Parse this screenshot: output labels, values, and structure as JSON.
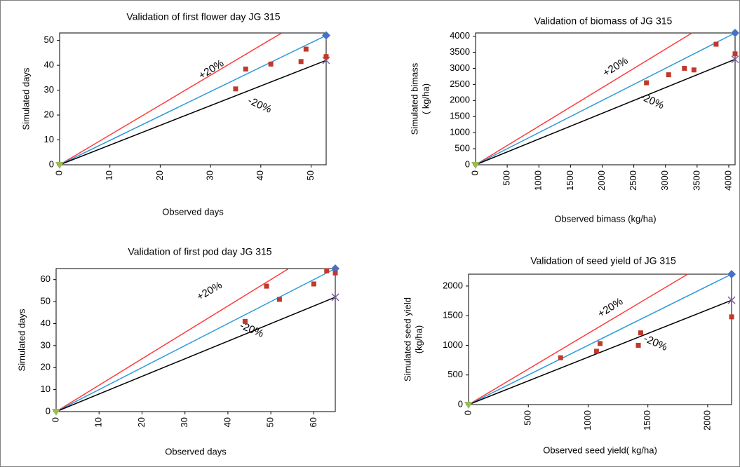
{
  "chart_data": [
    {
      "type": "scatter",
      "title": "Validation of first flower day JG 315",
      "xlabel": "Observed days",
      "ylabel": [
        "Simulated days"
      ],
      "xlim": [
        0,
        53
      ],
      "xticks": [
        0,
        10,
        20,
        30,
        40,
        50
      ],
      "ylim": [
        0,
        53
      ],
      "yticks": [
        0,
        10,
        20,
        30,
        40,
        50
      ],
      "annotations": [
        "+20%",
        "-20%"
      ],
      "series": [
        {
          "mode": "line",
          "color": "#ff3b3b",
          "x": [
            0,
            44
          ],
          "values": [
            0,
            52.8
          ]
        },
        {
          "mode": "line",
          "color": "#2e9ad8",
          "end_marker": "diamond",
          "end_color": "#4472c4",
          "x": [
            0,
            53
          ],
          "values": [
            0,
            52
          ]
        },
        {
          "mode": "line",
          "color": "#000000",
          "end_marker": "x",
          "end_color": "#8064a2",
          "x": [
            0,
            53
          ],
          "values": [
            0,
            42
          ]
        },
        {
          "mode": "markers",
          "marker": "triangle",
          "color": "#9bbb59",
          "x": [
            0
          ],
          "values": [
            0
          ]
        },
        {
          "mode": "markers",
          "marker": "square",
          "color": "#c0392b",
          "x": [
            35,
            37,
            42,
            48,
            49,
            53
          ],
          "values": [
            30.5,
            38.5,
            40.5,
            41.5,
            46.5,
            43.5
          ]
        }
      ]
    },
    {
      "type": "scatter",
      "title": "Validation of biomass of JG 315",
      "xlabel": "Observed bimass (kg/ha)",
      "ylabel": [
        "Simulated bimass",
        "( kg/ha)"
      ],
      "xlim": [
        0,
        4100
      ],
      "xticks": [
        0,
        500,
        1000,
        1500,
        2000,
        2500,
        3000,
        3500,
        4000
      ],
      "ylim": [
        0,
        4100
      ],
      "yticks": [
        0,
        500,
        1000,
        1500,
        2000,
        2500,
        3000,
        3500,
        4000
      ],
      "annotations": [
        "+20%",
        "-20%"
      ],
      "series": [
        {
          "mode": "line",
          "color": "#ff3b3b",
          "x": [
            0,
            3420
          ],
          "values": [
            0,
            4100
          ]
        },
        {
          "mode": "line",
          "color": "#2e9ad8",
          "end_marker": "diamond",
          "end_color": "#4472c4",
          "x": [
            0,
            4100
          ],
          "values": [
            0,
            4100
          ]
        },
        {
          "mode": "line",
          "color": "#000000",
          "end_marker": "x",
          "end_color": "#8064a2",
          "x": [
            0,
            4100
          ],
          "values": [
            0,
            3280
          ]
        },
        {
          "mode": "markers",
          "marker": "triangle",
          "color": "#9bbb59",
          "x": [
            0
          ],
          "values": [
            0
          ]
        },
        {
          "mode": "markers",
          "marker": "square",
          "color": "#c0392b",
          "x": [
            2700,
            3050,
            3300,
            3450,
            3800,
            4100
          ],
          "values": [
            2550,
            2800,
            3000,
            2950,
            3750,
            3450
          ]
        }
      ]
    },
    {
      "type": "scatter",
      "title": "Validation of first pod day JG 315",
      "xlabel": "Observed days",
      "ylabel": [
        "Simulated days"
      ],
      "xlim": [
        0,
        65
      ],
      "xticks": [
        0,
        10,
        20,
        30,
        40,
        50,
        60
      ],
      "ylim": [
        0,
        65
      ],
      "yticks": [
        0,
        10,
        20,
        30,
        40,
        50,
        60
      ],
      "annotations": [
        "+20%",
        "-20%"
      ],
      "series": [
        {
          "mode": "line",
          "color": "#ff3b3b",
          "x": [
            0,
            54
          ],
          "values": [
            0,
            64.8
          ]
        },
        {
          "mode": "line",
          "color": "#2e9ad8",
          "end_marker": "diamond",
          "end_color": "#4472c4",
          "x": [
            0,
            65
          ],
          "values": [
            0,
            65
          ]
        },
        {
          "mode": "line",
          "color": "#000000",
          "end_marker": "x",
          "end_color": "#8064a2",
          "x": [
            0,
            65
          ],
          "values": [
            0,
            52
          ]
        },
        {
          "mode": "markers",
          "marker": "triangle",
          "color": "#9bbb59",
          "x": [
            0
          ],
          "values": [
            0
          ]
        },
        {
          "mode": "markers",
          "marker": "square",
          "color": "#c0392b",
          "x": [
            44,
            49,
            52,
            60,
            63,
            65
          ],
          "values": [
            41,
            57,
            51,
            58,
            64,
            63
          ]
        }
      ]
    },
    {
      "type": "scatter",
      "title": "Validation of seed yield of JG 315",
      "xlabel": "Observed seed yield( kg/ha)",
      "ylabel": [
        "Simulated seed yield",
        "(kg/ha)"
      ],
      "xlim": [
        0,
        2200
      ],
      "xticks": [
        0,
        500,
        1000,
        1500,
        2000
      ],
      "ylim": [
        0,
        2200
      ],
      "yticks": [
        0,
        500,
        1000,
        1500,
        2000
      ],
      "annotations": [
        "+20%",
        "-20%"
      ],
      "series": [
        {
          "mode": "line",
          "color": "#ff3b3b",
          "x": [
            0,
            1833
          ],
          "values": [
            0,
            2200
          ]
        },
        {
          "mode": "line",
          "color": "#2e9ad8",
          "end_marker": "diamond",
          "end_color": "#4472c4",
          "x": [
            0,
            2200
          ],
          "values": [
            0,
            2200
          ]
        },
        {
          "mode": "line",
          "color": "#000000",
          "end_marker": "x",
          "end_color": "#8064a2",
          "x": [
            0,
            2200
          ],
          "values": [
            0,
            1760
          ]
        },
        {
          "mode": "markers",
          "marker": "triangle",
          "color": "#9bbb59",
          "x": [
            0
          ],
          "values": [
            0
          ]
        },
        {
          "mode": "markers",
          "marker": "square",
          "color": "#c0392b",
          "x": [
            770,
            1070,
            1100,
            1420,
            1440,
            2200
          ],
          "values": [
            790,
            900,
            1030,
            1000,
            1210,
            1480
          ]
        }
      ]
    }
  ]
}
